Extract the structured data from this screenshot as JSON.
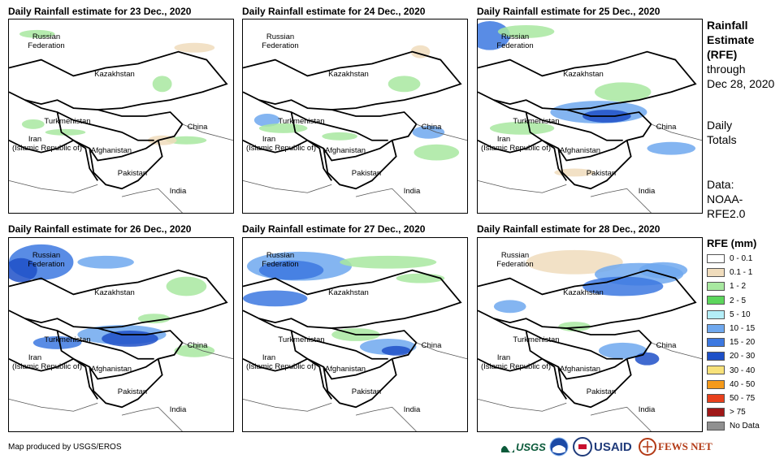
{
  "panels": [
    {
      "title": "Daily Rainfall estimate for 23 Dec., 2020"
    },
    {
      "title": "Daily Rainfall estimate for 24 Dec., 2020"
    },
    {
      "title": "Daily Rainfall estimate for 25 Dec., 2020"
    },
    {
      "title": "Daily Rainfall estimate for 26 Dec., 2020"
    },
    {
      "title": "Daily Rainfall estimate for 27 Dec., 2020"
    },
    {
      "title": "Daily Rainfall estimate for 28 Dec., 2020"
    }
  ],
  "map_labels": {
    "russia_1": "Russian",
    "russia_2": "Federation",
    "kazakhstan": "Kazakhstan",
    "turkmenistan": "Turkmenistan",
    "iran_1": "Iran",
    "iran_2": "(Islamic Republic of)",
    "afghanistan": "Afghanistan",
    "pakistan": "Pakistan",
    "india": "India",
    "china": "China"
  },
  "side": {
    "title_1": "Rainfall",
    "title_2": "Estimate",
    "title_3": "(RFE)",
    "through": "through",
    "date": "Dec 28, 2020",
    "daily": "Daily",
    "totals": "Totals",
    "data_1": "Data:",
    "data_2": "NOAA-",
    "data_3": "RFE2.0"
  },
  "legend": {
    "title": "RFE (mm)",
    "items": [
      {
        "label": "0 - 0.1",
        "color": "#ffffff"
      },
      {
        "label": "0.1 - 1",
        "color": "#f0dcbc"
      },
      {
        "label": "1 - 2",
        "color": "#a8e8a0"
      },
      {
        "label": "2 - 5",
        "color": "#5cd65c"
      },
      {
        "label": "5 - 10",
        "color": "#b4eef8"
      },
      {
        "label": "10 - 15",
        "color": "#6fa8ee"
      },
      {
        "label": "15 - 20",
        "color": "#3c78e0"
      },
      {
        "label": "20 - 30",
        "color": "#1e50c8"
      },
      {
        "label": "30 - 40",
        "color": "#f8e27a"
      },
      {
        "label": "40 - 50",
        "color": "#f59a1a"
      },
      {
        "label": "50 - 75",
        "color": "#e8401c"
      },
      {
        "label": "> 75",
        "color": "#a01818"
      },
      {
        "label": "No Data",
        "color": "#909090"
      }
    ]
  },
  "credit": "Map produced by USGS/EROS",
  "logos": {
    "usgs": "USGS",
    "usaid": "USAID",
    "fewsnet": "FEWS NET"
  }
}
